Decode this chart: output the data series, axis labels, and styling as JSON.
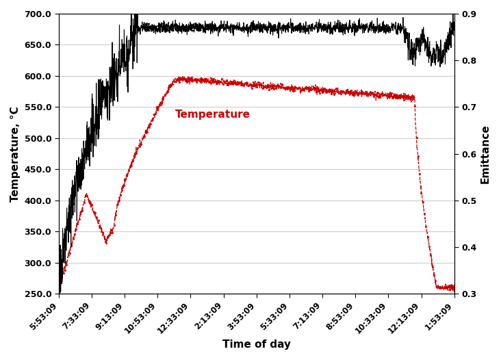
{
  "title": "",
  "xlabel": "Time of day",
  "ylabel_left": "Temperature, °C",
  "ylabel_right": "Emittance",
  "left_ylim": [
    250.0,
    700.0
  ],
  "right_ylim": [
    0.3,
    0.9
  ],
  "left_yticks": [
    250.0,
    300.0,
    350.0,
    400.0,
    450.0,
    500.0,
    550.0,
    600.0,
    650.0,
    700.0
  ],
  "right_yticks": [
    0.3,
    0.4,
    0.5,
    0.6,
    0.7,
    0.8,
    0.9
  ],
  "xtick_labels": [
    "5:53:09",
    "7:33:09",
    "9:13:09",
    "10:53:09",
    "12:33:09",
    "2:13:09",
    "3:53:09",
    "5:33:09",
    "7:13:09",
    "8:53:09",
    "10:33:09",
    "12:13:09",
    "1:53:09"
  ],
  "emittance_label": "Emittance",
  "temperature_label": "Temperature",
  "temp_color": "#CC0000",
  "emit_color": "#000000",
  "background_color": "#ffffff",
  "grid_color": "#cccccc"
}
